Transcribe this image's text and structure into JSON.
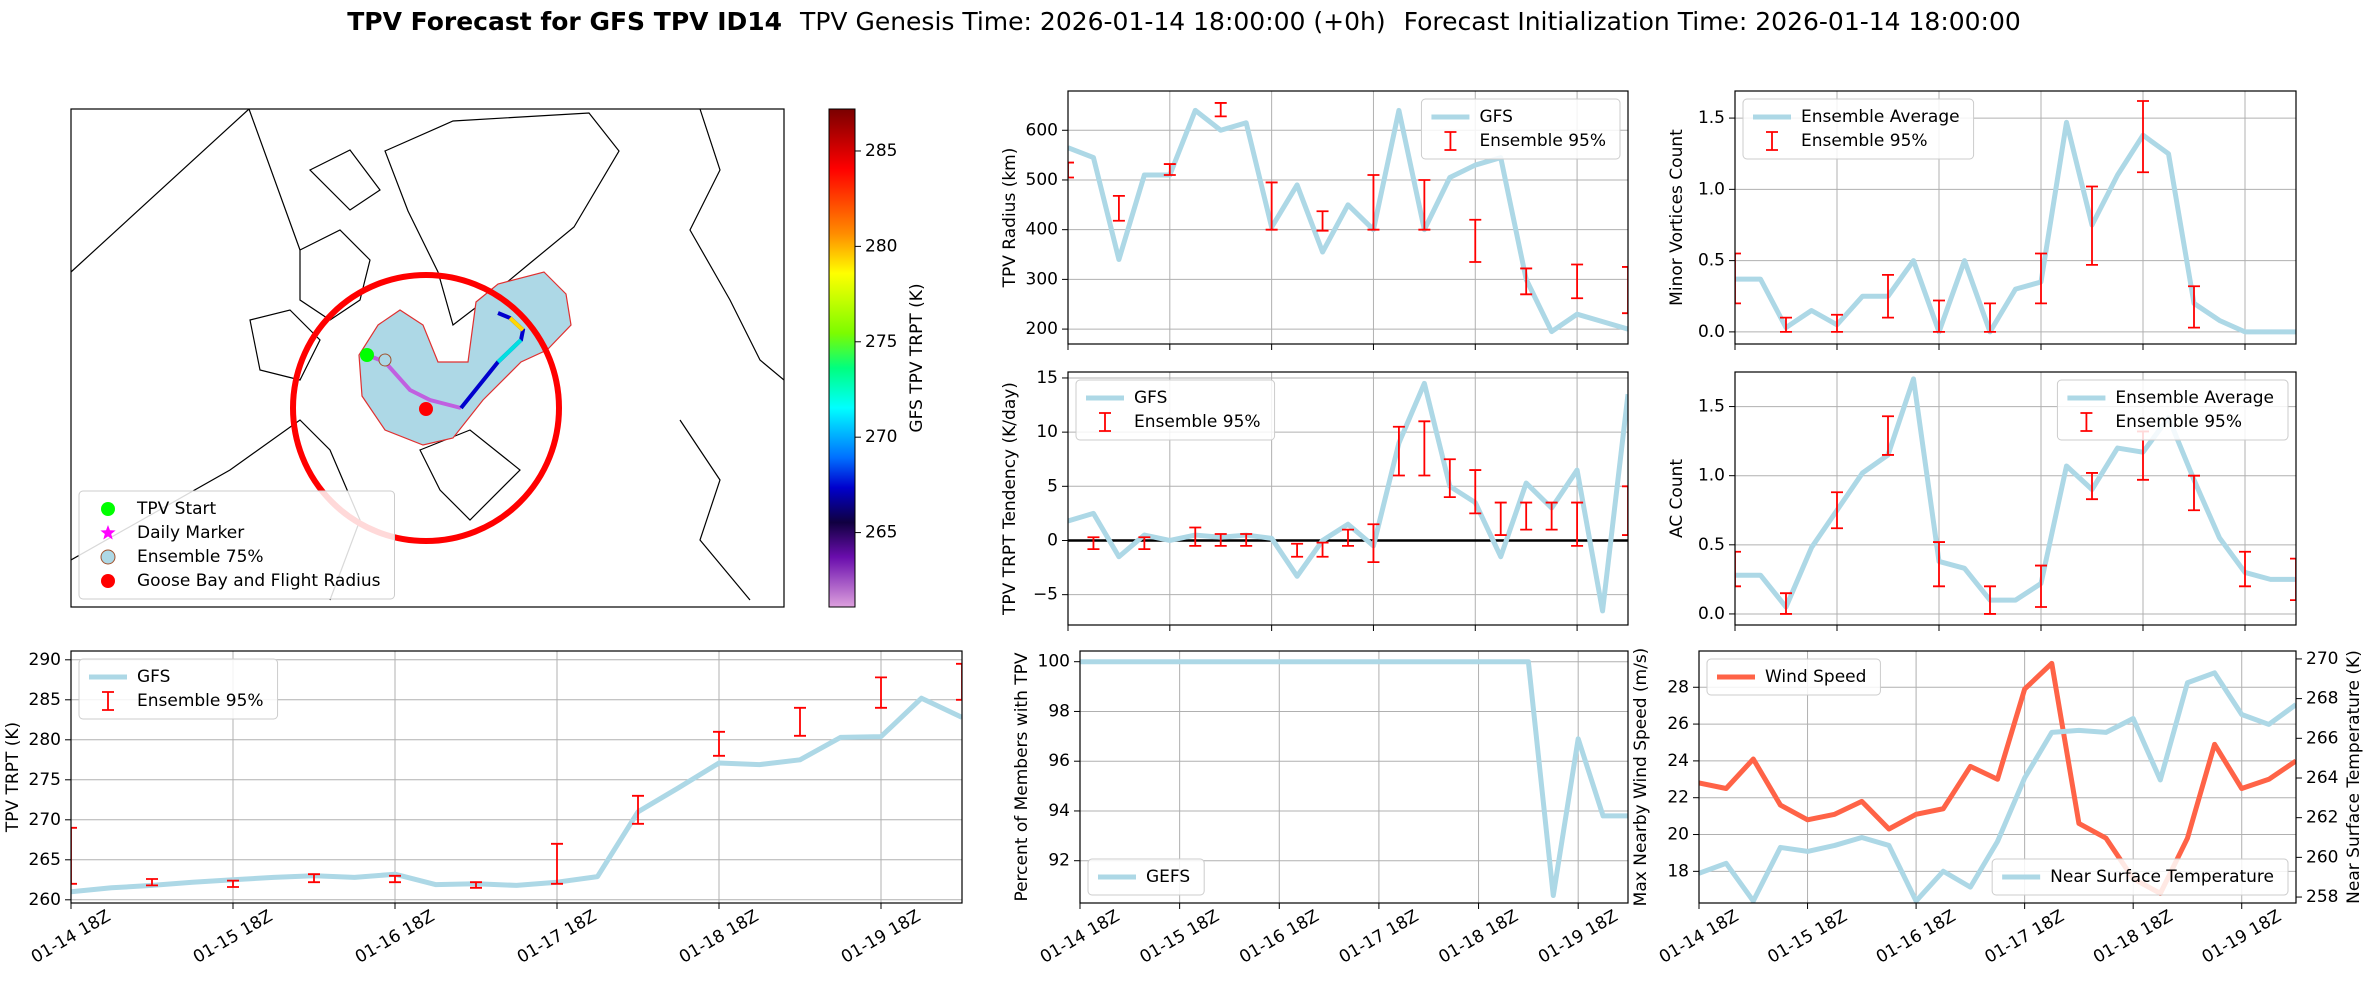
{
  "header": {
    "title": "TPV Forecast for GFS TPV ID14",
    "genesis": "TPV Genesis Time: 2026-01-14 18:00:00 (+0h)",
    "init": "Forecast Initialization Time: 2026-01-14 18:00:00"
  },
  "chart_data": [
    {
      "type": "map",
      "legend": "lower left",
      "legend_entries": [
        {
          "label": "TPV Start",
          "marker": "circle",
          "color": "#00ff00"
        },
        {
          "label": "Daily Marker",
          "marker": "star",
          "color": "#ff00ff"
        },
        {
          "label": "Ensemble 75%",
          "marker": "circle",
          "color": "#add8e6",
          "edgecolor": "#a0522d"
        },
        {
          "label": "Goose Bay and Flight Radius",
          "marker": "circle",
          "color": "#ff0000"
        }
      ]
    },
    {
      "type": "colorbar",
      "ylabel": "GFS TPV TRPT (K)",
      "ylim": [
        261.1,
        287.2
      ],
      "yticks": [
        265,
        270,
        275,
        280,
        285
      ]
    },
    {
      "type": "line",
      "ylabel": "TPV Radius (km)",
      "categories": [
        null,
        null,
        null,
        null,
        null,
        null,
        null,
        null,
        null,
        null,
        null,
        null,
        null,
        null,
        null,
        null,
        null,
        null,
        null,
        null,
        null,
        null,
        null
      ],
      "xticks": [
        0,
        4,
        8,
        12,
        16,
        20
      ],
      "ylim": [
        170,
        679
      ],
      "yticks": [
        200,
        300,
        400,
        500,
        600
      ],
      "grid": true,
      "legend": "upper right",
      "series": [
        {
          "name": "GFS",
          "type": "line",
          "color": "#add8e6",
          "values": [
            565,
            545,
            340,
            510,
            510,
            640,
            600,
            615,
            405,
            490,
            355,
            450,
            400,
            640,
            400,
            505,
            530,
            545,
            300,
            195,
            230,
            215,
            200
          ]
        },
        {
          "name": "Ensemble 95%",
          "type": "errorbar",
          "color": "#ff0000",
          "low": [
            505,
            null,
            418,
            null,
            510,
            null,
            628,
            null,
            400,
            null,
            398,
            null,
            400,
            null,
            400,
            null,
            335,
            null,
            270,
            null,
            262,
            null,
            232
          ],
          "high": [
            535,
            null,
            468,
            null,
            532,
            null,
            655,
            null,
            495,
            null,
            437,
            null,
            510,
            null,
            500,
            null,
            420,
            null,
            322,
            null,
            330,
            null,
            325
          ]
        }
      ]
    },
    {
      "type": "line",
      "ylabel": "Minor Vortices Count",
      "categories": [
        null,
        null,
        null,
        null,
        null,
        null,
        null,
        null,
        null,
        null,
        null,
        null,
        null,
        null,
        null,
        null,
        null,
        null,
        null,
        null,
        null,
        null,
        null
      ],
      "xticks": [
        0,
        4,
        8,
        12,
        16,
        20
      ],
      "ylim": [
        -0.085,
        1.69
      ],
      "yticks": [
        {
          "value": 0,
          "label": "0.0"
        },
        {
          "value": 0.5,
          "label": "0.5"
        },
        {
          "value": 1,
          "label": "1.0"
        },
        {
          "value": 1.5,
          "label": "1.5"
        }
      ],
      "grid": true,
      "legend": "upper left",
      "series": [
        {
          "name": "Ensemble Average",
          "type": "line",
          "color": "#add8e6",
          "values": [
            0.37,
            0.37,
            0.03,
            0.15,
            0.05,
            0.25,
            0.25,
            0.5,
            0.0,
            0.5,
            0.0,
            0.3,
            0.35,
            1.47,
            0.75,
            1.1,
            1.38,
            1.25,
            0.2,
            0.08,
            0.0,
            0.0,
            0.0
          ]
        },
        {
          "name": "Ensemble 95%",
          "type": "errorbar",
          "color": "#ff0000",
          "low": [
            0.2,
            null,
            0.0,
            null,
            0.0,
            null,
            0.1,
            null,
            0.0,
            null,
            0.0,
            null,
            0.2,
            null,
            0.47,
            null,
            1.12,
            null,
            0.03,
            null,
            null,
            null,
            null
          ],
          "high": [
            0.55,
            null,
            0.1,
            null,
            0.12,
            null,
            0.4,
            null,
            0.22,
            null,
            0.2,
            null,
            0.55,
            null,
            1.02,
            null,
            1.62,
            null,
            0.32,
            null,
            null,
            null,
            null
          ]
        }
      ]
    },
    {
      "type": "line",
      "ylabel": "TPV TRPT Tendency (K/day)",
      "categories": [
        null,
        null,
        null,
        null,
        null,
        null,
        null,
        null,
        null,
        null,
        null,
        null,
        null,
        null,
        null,
        null,
        null,
        null,
        null,
        null,
        null,
        null,
        null
      ],
      "xticks": [
        0,
        4,
        8,
        12,
        16,
        20
      ],
      "ylim": [
        -7.8,
        15.55
      ],
      "yticks": [
        {
          "value": -5,
          "label": "−5"
        },
        0,
        5,
        10,
        15
      ],
      "grid": true,
      "legend": "upper left",
      "hline": 0,
      "series": [
        {
          "name": "GFS",
          "type": "line",
          "color": "#add8e6",
          "values": [
            1.8,
            2.5,
            -1.5,
            0.5,
            0,
            0.5,
            0.3,
            0.5,
            0.2,
            -3.3,
            0,
            1.5,
            -0.5,
            9,
            14.5,
            5,
            3.5,
            -1.5,
            5.3,
            3,
            6.5,
            -6.5,
            13.5
          ]
        },
        {
          "name": "Ensemble 95%",
          "type": "errorbar",
          "color": "#ff0000",
          "low": [
            null,
            -0.8,
            null,
            -0.8,
            null,
            -0.5,
            -0.5,
            -0.5,
            null,
            -1.5,
            -1.5,
            -0.5,
            -2,
            6,
            6,
            4,
            2.5,
            0.5,
            1,
            1,
            -0.5,
            null,
            0.5
          ],
          "high": [
            null,
            0.3,
            null,
            0.3,
            null,
            1.2,
            0.6,
            0.6,
            null,
            -0.3,
            -0.2,
            1,
            1.5,
            10.5,
            11,
            7.5,
            6.5,
            3.5,
            3.5,
            3.5,
            3.5,
            null,
            5
          ]
        }
      ]
    },
    {
      "type": "line",
      "ylabel": "AC Count",
      "categories": [
        null,
        null,
        null,
        null,
        null,
        null,
        null,
        null,
        null,
        null,
        null,
        null,
        null,
        null,
        null,
        null,
        null,
        null,
        null,
        null,
        null,
        null,
        null
      ],
      "xticks": [
        0,
        4,
        8,
        12,
        16,
        20
      ],
      "ylim": [
        -0.08,
        1.75
      ],
      "yticks": [
        {
          "value": 0,
          "label": "0.0"
        },
        {
          "value": 0.5,
          "label": "0.5"
        },
        {
          "value": 1,
          "label": "1.0"
        },
        {
          "value": 1.5,
          "label": "1.5"
        }
      ],
      "grid": true,
      "legend": "upper right",
      "series": [
        {
          "name": "Ensemble Average",
          "type": "line",
          "color": "#add8e6",
          "values": [
            0.28,
            0.28,
            0.05,
            0.48,
            0.75,
            1.02,
            1.15,
            1.7,
            0.38,
            0.33,
            0.1,
            0.1,
            0.22,
            1.07,
            0.9,
            1.2,
            1.17,
            1.42,
            0.97,
            0.55,
            0.3,
            0.25,
            0.25
          ]
        },
        {
          "name": "Ensemble 95%",
          "type": "errorbar",
          "color": "#ff0000",
          "low": [
            0.2,
            null,
            0.0,
            null,
            0.62,
            null,
            1.15,
            null,
            0.2,
            null,
            0.0,
            null,
            0.05,
            null,
            0.83,
            null,
            0.97,
            null,
            0.75,
            null,
            0.2,
            null,
            0.1
          ],
          "high": [
            0.45,
            null,
            0.15,
            null,
            0.88,
            null,
            1.43,
            null,
            0.52,
            null,
            0.2,
            null,
            0.35,
            null,
            1.02,
            null,
            1.32,
            null,
            1.0,
            null,
            0.45,
            null,
            0.4
          ]
        }
      ]
    },
    {
      "type": "line",
      "ylabel": "TPV TRPT (K)",
      "categories": [
        "01-14 18Z",
        null,
        null,
        null,
        "01-15 18Z",
        null,
        null,
        null,
        "01-16 18Z",
        null,
        null,
        null,
        "01-17 18Z",
        null,
        null,
        null,
        "01-18 18Z",
        null,
        null,
        null,
        "01-19 18Z",
        null,
        null
      ],
      "ylim": [
        259.6,
        291.1
      ],
      "yticks": [
        260,
        265,
        270,
        275,
        280,
        285,
        290
      ],
      "grid": true,
      "legend": "upper left",
      "series": [
        {
          "name": "GFS",
          "type": "line",
          "color": "#add8e6",
          "values": [
            261,
            261.5,
            261.8,
            262.2,
            262.5,
            262.8,
            263,
            262.8,
            263.2,
            261.9,
            262,
            261.8,
            262.2,
            262.9,
            271,
            274,
            277.1,
            276.9,
            277.5,
            280.3,
            280.4,
            285.2,
            282.8
          ]
        },
        {
          "name": "Ensemble 95%",
          "type": "errorbar",
          "color": "#ff0000",
          "low": [
            262,
            null,
            261.8,
            null,
            261.6,
            null,
            262.2,
            null,
            262.2,
            null,
            261.5,
            null,
            262,
            null,
            269.5,
            null,
            278,
            null,
            280.5,
            null,
            284,
            null,
            285
          ],
          "high": [
            269,
            null,
            262.6,
            null,
            262.4,
            null,
            263.2,
            null,
            263,
            null,
            262.2,
            null,
            267,
            null,
            273,
            null,
            281,
            null,
            284,
            null,
            287.8,
            null,
            289.5
          ]
        }
      ]
    },
    {
      "type": "line",
      "ylabel": "Percent of Members with TPV",
      "categories": [
        "01-14 18Z",
        null,
        null,
        null,
        "01-15 18Z",
        null,
        null,
        null,
        "01-16 18Z",
        null,
        null,
        null,
        "01-17 18Z",
        null,
        null,
        null,
        "01-18 18Z",
        null,
        null,
        null,
        "01-19 18Z",
        null,
        null
      ],
      "ylim": [
        90.3,
        100.43
      ],
      "yticks": [
        92,
        94,
        96,
        98,
        100
      ],
      "grid": true,
      "legend": "lower left",
      "series": [
        {
          "name": "GEFS",
          "type": "line",
          "color": "#add8e6",
          "values": [
            100,
            100,
            100,
            100,
            100,
            100,
            100,
            100,
            100,
            100,
            100,
            100,
            100,
            100,
            100,
            100,
            100,
            100,
            100,
            90.6,
            96.9,
            93.8,
            93.8
          ]
        }
      ]
    },
    {
      "type": "line",
      "ylabel": "Max Nearby Wind Speed (m/s)",
      "ylabel_color": "#ff6347",
      "y2label": "Near Surface Temperature (K)",
      "y2label_color": "#4169e1",
      "categories": [
        "01-14 18Z",
        null,
        null,
        null,
        "01-15 18Z",
        null,
        null,
        null,
        "01-16 18Z",
        null,
        null,
        null,
        "01-17 18Z",
        null,
        null,
        null,
        "01-18 18Z",
        null,
        null,
        null,
        "01-19 18Z",
        null,
        null
      ],
      "ylim": [
        16.28,
        29.97
      ],
      "yticks": [
        18,
        20,
        22,
        24,
        26,
        28
      ],
      "y2lim": [
        257.7,
        270.4
      ],
      "y2ticks": [
        258,
        260,
        262,
        264,
        266,
        268,
        270
      ],
      "grid": true,
      "legend": "upper left",
      "legend2": "lower right",
      "series": [
        {
          "name": "Wind Speed",
          "type": "line",
          "color": "#ff6347",
          "values": [
            22.8,
            22.5,
            24.1,
            21.6,
            20.8,
            21.1,
            21.8,
            20.3,
            21.1,
            21.4,
            23.7,
            23.0,
            27.9,
            29.3,
            20.6,
            19.8,
            17.6,
            16.8,
            19.8,
            24.9,
            22.5,
            23.0,
            24.0
          ]
        },
        {
          "name": "Near Surface Temperature",
          "type": "line",
          "axis": "y2",
          "color": "#add8e6",
          "values": [
            259.2,
            259.7,
            257.8,
            260.5,
            260.3,
            260.6,
            261,
            260.6,
            257.8,
            259.3,
            258.5,
            260.8,
            264,
            266.3,
            266.4,
            266.3,
            267,
            263.9,
            268.8,
            269.3,
            267.2,
            266.7,
            267.7
          ]
        }
      ]
    }
  ]
}
